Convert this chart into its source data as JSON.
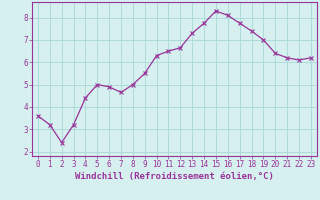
{
  "x": [
    0,
    1,
    2,
    3,
    4,
    5,
    6,
    7,
    8,
    9,
    10,
    11,
    12,
    13,
    14,
    15,
    16,
    17,
    18,
    19,
    20,
    21,
    22,
    23
  ],
  "y": [
    3.6,
    3.2,
    2.4,
    3.2,
    4.4,
    5.0,
    4.9,
    4.65,
    5.0,
    5.5,
    6.3,
    6.5,
    6.65,
    7.3,
    7.75,
    8.3,
    8.1,
    7.75,
    7.4,
    7.0,
    6.4,
    6.2,
    6.1,
    6.2
  ],
  "line_color": "#993399",
  "marker": "x",
  "marker_size": 2.5,
  "line_width": 0.9,
  "xlabel": "Windchill (Refroidissement éolien,°C)",
  "xlabel_fontsize": 6.5,
  "ylim": [
    1.8,
    8.7
  ],
  "xlim": [
    -0.5,
    23.5
  ],
  "yticks": [
    2,
    3,
    4,
    5,
    6,
    7,
    8
  ],
  "xticks": [
    0,
    1,
    2,
    3,
    4,
    5,
    6,
    7,
    8,
    9,
    10,
    11,
    12,
    13,
    14,
    15,
    16,
    17,
    18,
    19,
    20,
    21,
    22,
    23
  ],
  "xtick_labels": [
    "0",
    "1",
    "2",
    "3",
    "4",
    "5",
    "6",
    "7",
    "8",
    "9",
    "10",
    "11",
    "12",
    "13",
    "14",
    "15",
    "16",
    "17",
    "18",
    "19",
    "20",
    "21",
    "22",
    "23"
  ],
  "background_color": "#d6f0f0",
  "grid_color": "#a8d8d8",
  "tick_color": "#993399",
  "tick_fontsize": 5.5,
  "label_color": "#993399",
  "spine_color": "#993399"
}
